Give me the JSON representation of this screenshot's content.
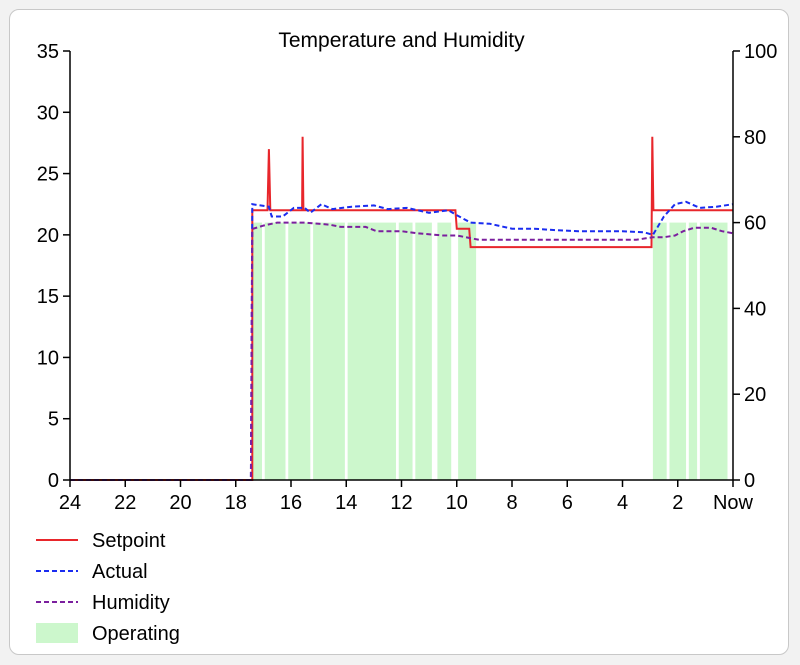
{
  "chart_data": {
    "type": "line",
    "title": "Temperature and Humidity",
    "x_ticks": [
      "24",
      "22",
      "20",
      "18",
      "16",
      "14",
      "12",
      "10",
      "8",
      "6",
      "4",
      "2",
      "Now"
    ],
    "x_tick_values": [
      24,
      22,
      20,
      18,
      16,
      14,
      12,
      10,
      8,
      6,
      4,
      2,
      0
    ],
    "xlim": [
      24,
      0
    ],
    "left_axis": {
      "ylim": [
        0,
        35
      ],
      "ticks": [
        "0",
        "5",
        "10",
        "15",
        "20",
        "25",
        "30",
        "35"
      ],
      "tick_values": [
        0,
        5,
        10,
        15,
        20,
        25,
        30,
        35
      ]
    },
    "right_axis": {
      "ylim": [
        0,
        100
      ],
      "ticks": [
        "0",
        "20",
        "40",
        "60",
        "80",
        "100"
      ],
      "tick_values": [
        0,
        20,
        40,
        60,
        80,
        100
      ]
    },
    "legend": [
      {
        "label": "Setpoint",
        "color": "#e8262b",
        "style": "solid"
      },
      {
        "label": "Actual",
        "color": "#1a2cf0",
        "style": "dashed"
      },
      {
        "label": "Humidity",
        "color": "#7b1f9e",
        "style": "dashed"
      },
      {
        "label": "Operating",
        "color": "#ccf7cc",
        "style": "fill"
      }
    ],
    "series": [
      {
        "name": "Setpoint",
        "axis": "left",
        "points": [
          [
            24,
            0
          ],
          [
            17.4,
            0
          ],
          [
            17.4,
            22
          ],
          [
            16.85,
            22
          ],
          [
            16.8,
            27
          ],
          [
            16.75,
            22
          ],
          [
            15.6,
            22
          ],
          [
            15.58,
            28
          ],
          [
            15.55,
            22
          ],
          [
            10.05,
            22
          ],
          [
            10.0,
            20.5
          ],
          [
            9.55,
            20.5
          ],
          [
            9.5,
            19
          ],
          [
            2.95,
            19
          ],
          [
            2.92,
            28
          ],
          [
            2.88,
            22
          ],
          [
            0,
            22
          ]
        ]
      },
      {
        "name": "Actual",
        "axis": "left",
        "points": [
          [
            24,
            0
          ],
          [
            17.45,
            0
          ],
          [
            17.4,
            22.5
          ],
          [
            16.8,
            22.3
          ],
          [
            16.7,
            21.5
          ],
          [
            16.3,
            21.5
          ],
          [
            15.9,
            22.2
          ],
          [
            15.5,
            22.2
          ],
          [
            15.3,
            21.8
          ],
          [
            14.9,
            22.5
          ],
          [
            14.5,
            22.1
          ],
          [
            13.8,
            22.3
          ],
          [
            13.0,
            22.4
          ],
          [
            12.5,
            22.1
          ],
          [
            11.8,
            22.2
          ],
          [
            11.0,
            21.8
          ],
          [
            10.3,
            22.0
          ],
          [
            10.0,
            21.6
          ],
          [
            9.5,
            21.0
          ],
          [
            8.8,
            20.9
          ],
          [
            8.0,
            20.5
          ],
          [
            7.2,
            20.5
          ],
          [
            6.5,
            20.4
          ],
          [
            5.6,
            20.3
          ],
          [
            4.9,
            20.3
          ],
          [
            4.0,
            20.3
          ],
          [
            3.2,
            20.2
          ],
          [
            2.9,
            20.0
          ],
          [
            2.5,
            21.5
          ],
          [
            2.1,
            22.5
          ],
          [
            1.7,
            22.7
          ],
          [
            1.2,
            22.2
          ],
          [
            0.6,
            22.3
          ],
          [
            0,
            22.5
          ]
        ]
      },
      {
        "name": "Humidity",
        "axis": "right",
        "points": [
          [
            24,
            0
          ],
          [
            17.45,
            0
          ],
          [
            17.4,
            58.5
          ],
          [
            17.0,
            59.3
          ],
          [
            16.5,
            60
          ],
          [
            15.5,
            60
          ],
          [
            14.6,
            59.5
          ],
          [
            14.2,
            59.0
          ],
          [
            13.3,
            59.0
          ],
          [
            12.9,
            58.0
          ],
          [
            12.0,
            58.0
          ],
          [
            11.4,
            57.5
          ],
          [
            10.5,
            57.0
          ],
          [
            10.0,
            57.0
          ],
          [
            9.6,
            56.5
          ],
          [
            9.2,
            56.0
          ],
          [
            8.0,
            56.0
          ],
          [
            6.8,
            56.0
          ],
          [
            5.5,
            56.0
          ],
          [
            4.6,
            56.0
          ],
          [
            3.5,
            56.0
          ],
          [
            2.9,
            56.6
          ],
          [
            2.5,
            56.6
          ],
          [
            2.1,
            57.0
          ],
          [
            1.8,
            58.0
          ],
          [
            1.4,
            58.8
          ],
          [
            0.8,
            58.8
          ],
          [
            0.4,
            58.0
          ],
          [
            0,
            57.5
          ]
        ]
      }
    ],
    "operating_intervals": [
      [
        17.4,
        17.05
      ],
      [
        16.95,
        16.2
      ],
      [
        16.1,
        15.3
      ],
      [
        15.2,
        14.05
      ],
      [
        13.95,
        12.2
      ],
      [
        12.1,
        11.6
      ],
      [
        11.5,
        10.9
      ],
      [
        10.7,
        10.2
      ],
      [
        9.95,
        9.3
      ],
      [
        2.9,
        2.4
      ],
      [
        2.3,
        1.7
      ],
      [
        1.6,
        1.3
      ],
      [
        1.2,
        0.2
      ]
    ]
  }
}
